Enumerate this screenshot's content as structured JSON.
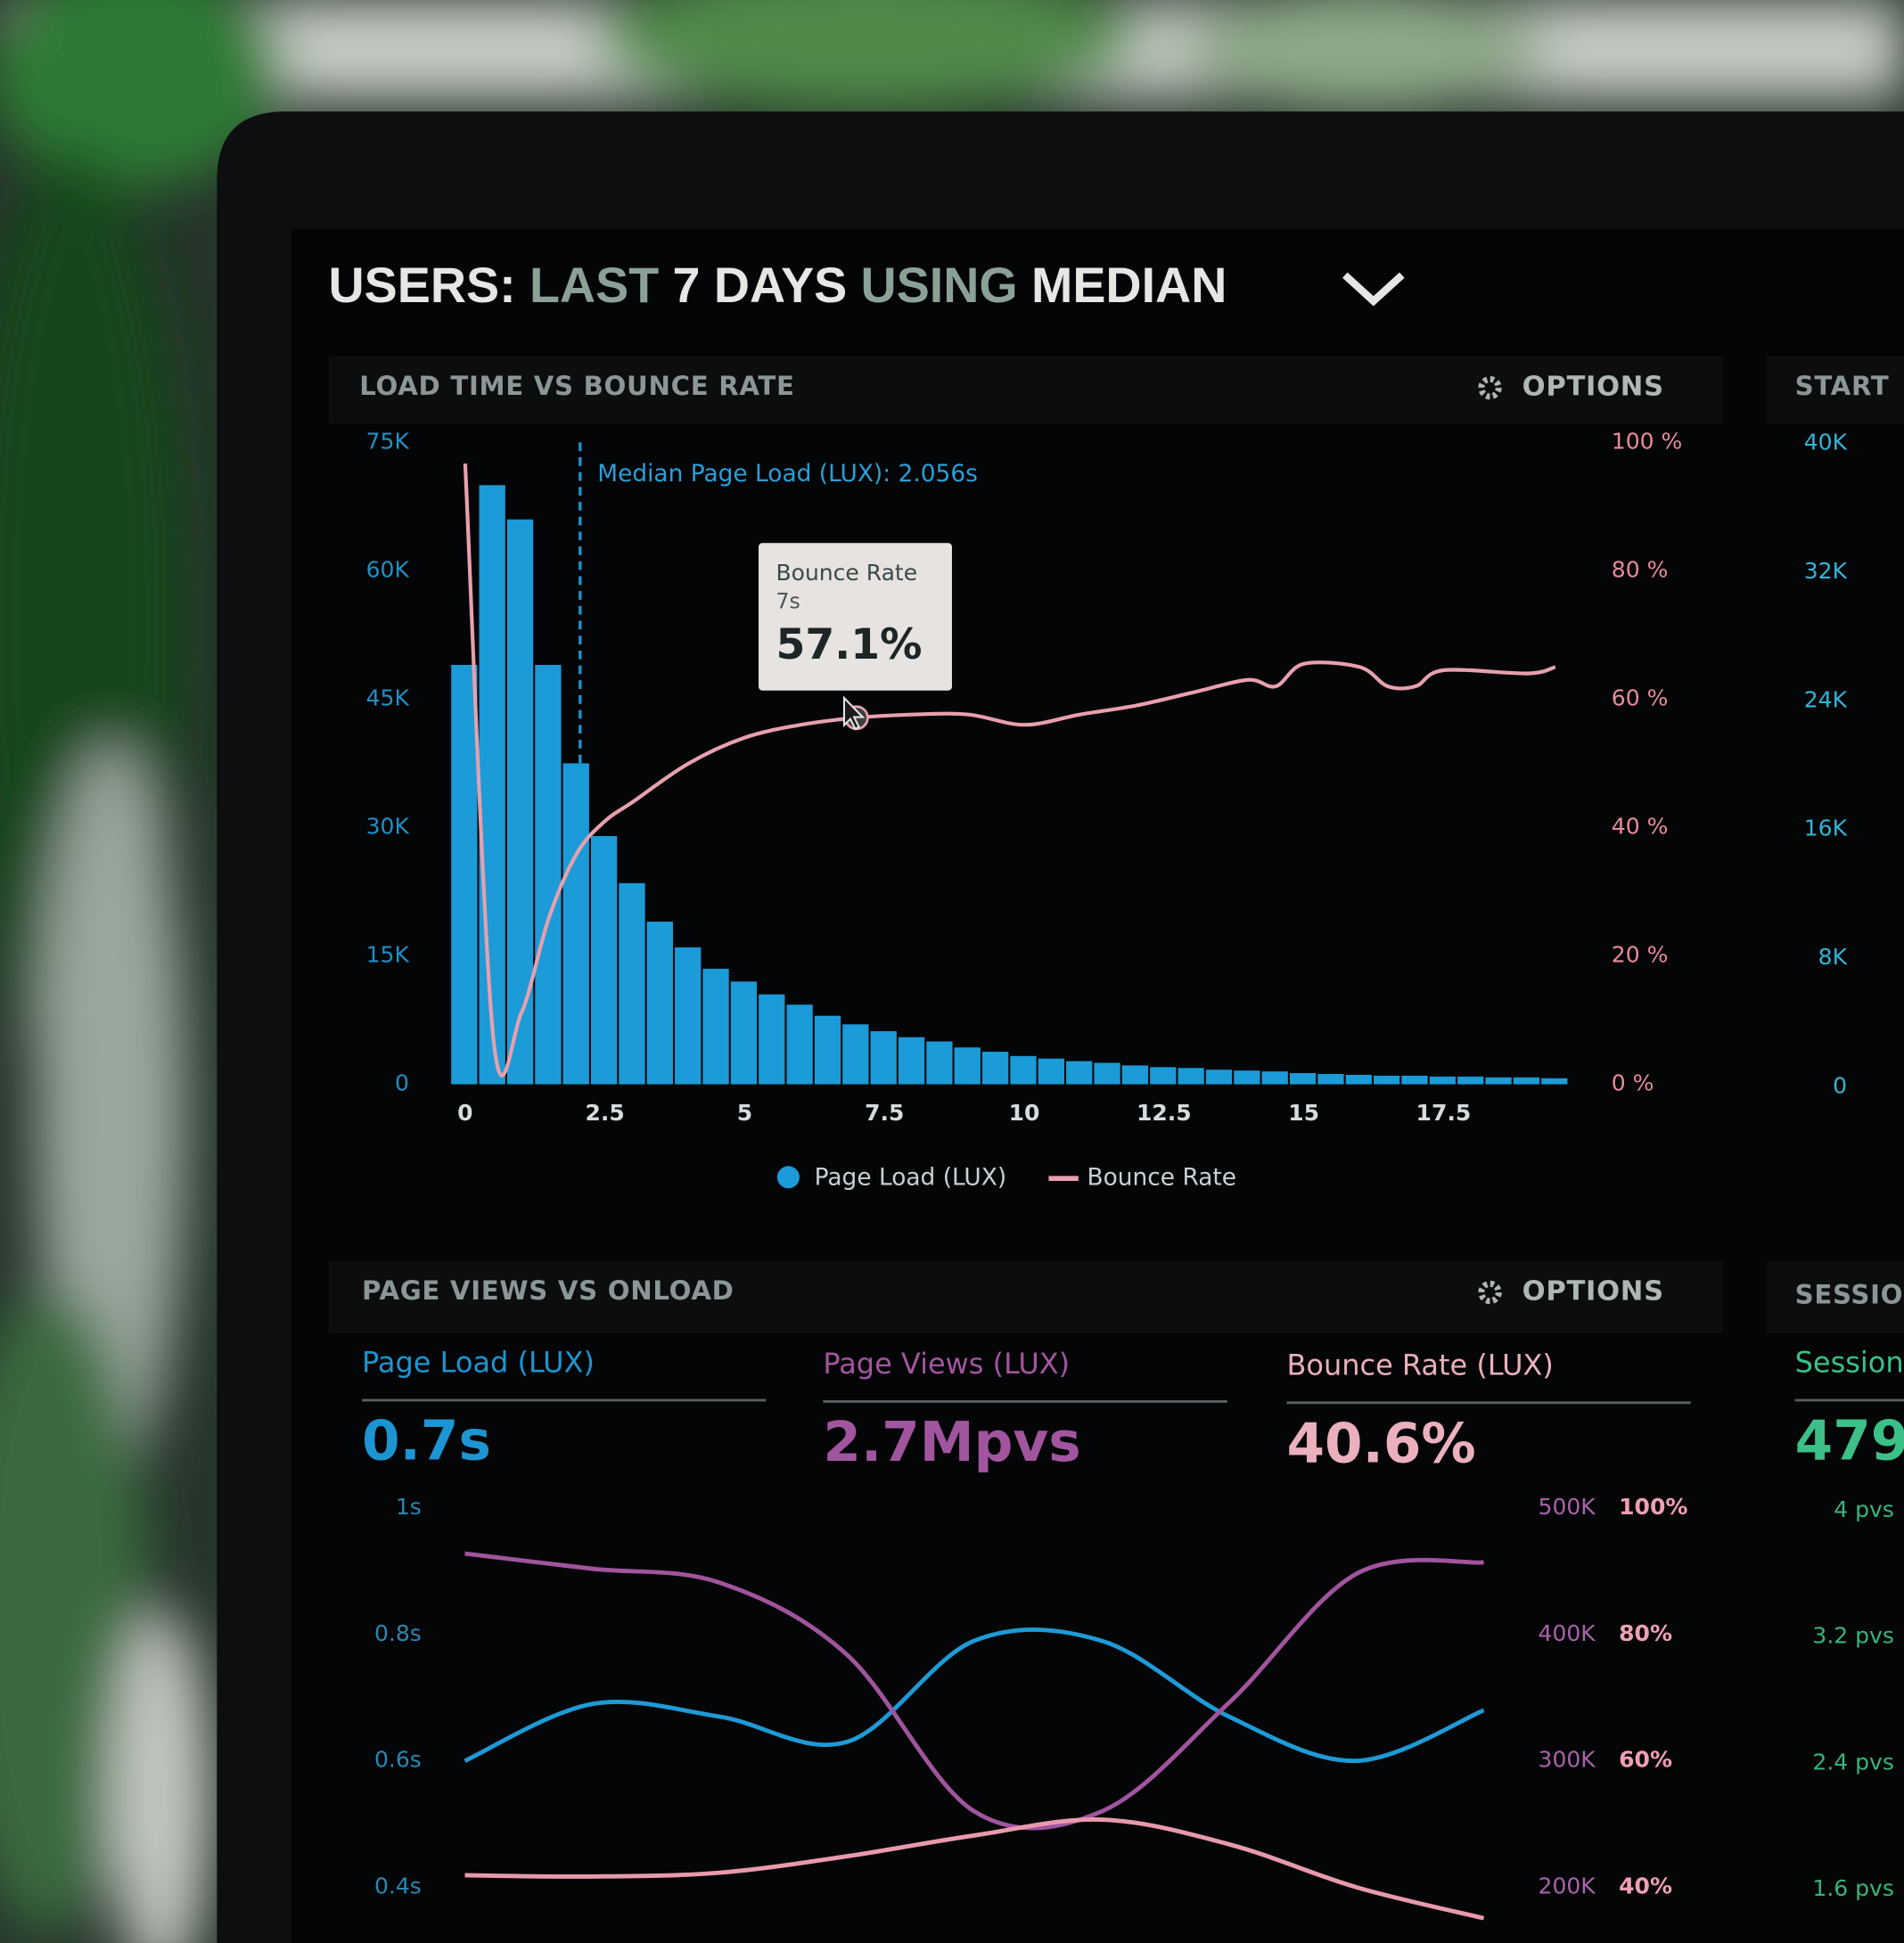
{
  "header": {
    "title_parts": [
      {
        "text": "USERS:",
        "color": "#e4e7e4"
      },
      {
        "text": "LAST",
        "color": "#8ba197"
      },
      {
        "text": "7 DAYS",
        "color": "#e4e7e4"
      },
      {
        "text": "USING",
        "color": "#8ba197"
      },
      {
        "text": "MEDIAN",
        "color": "#e4e7e4"
      }
    ]
  },
  "panels": [
    {
      "title": "LOAD TIME VS BOUNCE RATE",
      "options": "OPTIONS"
    },
    {
      "title": "PAGE VIEWS VS ONLOAD",
      "options": "OPTIONS",
      "kpis": [
        {
          "label": "Page Load (LUX)",
          "value": "0.7s",
          "color": "#1d95d2"
        },
        {
          "label": "Page Views (LUX)",
          "value": "2.7Mpvs",
          "color": "#a2559f"
        },
        {
          "label": "Bounce Rate (LUX)",
          "value": "40.6%",
          "color": "#eab0bd"
        }
      ]
    },
    {
      "title": "START"
    },
    {
      "title": "SESSIO",
      "kpis": [
        {
          "label": "Session",
          "value": "479",
          "color": "#3cc087"
        }
      ]
    }
  ],
  "chart_data": [
    {
      "type": "bar",
      "xlim": [
        -0.25,
        19.75
      ],
      "xticks": [
        0,
        2.5,
        5,
        7.5,
        10,
        12.5,
        15,
        17.5
      ],
      "ylim": [
        0,
        75000
      ],
      "yticks": [
        0,
        {
          "value": 15000,
          "label": "15K"
        },
        {
          "value": 30000,
          "label": "30K"
        },
        {
          "value": 45000,
          "label": "45K"
        },
        {
          "value": 60000,
          "label": "60K"
        },
        {
          "value": 75000,
          "label": "75K"
        }
      ],
      "y2lim": [
        0,
        100
      ],
      "y2ticks": [
        {
          "value": 0,
          "label": "0 %"
        },
        {
          "value": 20,
          "label": "20 %"
        },
        {
          "value": 40,
          "label": "40 %"
        },
        {
          "value": 60,
          "label": "60 %"
        },
        {
          "value": 80,
          "label": "80 %"
        },
        {
          "value": 100,
          "label": "100 %"
        }
      ],
      "series": [
        {
          "name": "Page Load (LUX)",
          "type": "bar",
          "color": "#1b9bd8",
          "x": [
            0,
            0.5,
            1,
            1.5,
            2,
            2.5,
            3,
            3.5,
            4,
            4.5,
            5,
            5.5,
            6,
            6.5,
            7,
            7.5,
            8,
            8.5,
            9,
            9.5,
            10,
            10.5,
            11,
            11.5,
            12,
            12.5,
            13,
            13.5,
            14,
            14.5,
            15,
            15.5,
            16,
            16.5,
            17,
            17.5,
            18,
            18.5,
            19,
            19.5
          ],
          "values": [
            49000,
            70000,
            66000,
            49000,
            37500,
            29000,
            23500,
            19000,
            16000,
            13500,
            12000,
            10500,
            9300,
            8000,
            7000,
            6200,
            5500,
            5000,
            4300,
            3800,
            3300,
            3000,
            2700,
            2500,
            2200,
            2000,
            1900,
            1700,
            1600,
            1500,
            1300,
            1200,
            1100,
            1000,
            1000,
            900,
            900,
            800,
            800,
            700
          ]
        },
        {
          "name": "Bounce Rate",
          "type": "line",
          "axis": "y2",
          "color": "#e8a0ae",
          "x": [
            0,
            0.5,
            1,
            1.5,
            2,
            2.5,
            3,
            4,
            5,
            6,
            7,
            8,
            9,
            10,
            11,
            12,
            13,
            14,
            14.5,
            15,
            16,
            16.5,
            17,
            17.5,
            19,
            19.5
          ],
          "values": [
            96.7,
            7.5,
            11,
            26,
            36,
            41,
            44,
            50,
            54,
            56,
            57.1,
            57.6,
            57.6,
            56,
            57.6,
            59,
            61,
            63,
            62,
            65.5,
            65,
            62,
            62,
            64.5,
            64,
            65
          ]
        }
      ],
      "median_line": {
        "value": 2.056,
        "label": "Median Page Load (LUX): 2.056s"
      },
      "tooltip": {
        "title": "Bounce Rate",
        "x": {
          "value": 7,
          "label": "7s"
        },
        "value": {
          "value": 57.1,
          "label": "57.1%"
        }
      },
      "legend": "bottom"
    },
    {
      "type": "line",
      "categories": [
        null,
        null,
        null,
        null,
        null,
        null,
        null,
        null,
        null
      ],
      "ylim": [
        0.3,
        1
      ],
      "yticks": [
        {
          "value": 1,
          "label": "1s"
        },
        {
          "value": 0.8,
          "label": "0.8s"
        },
        {
          "value": 0.6,
          "label": "0.6s"
        },
        {
          "value": 0.4,
          "label": "0.4s"
        }
      ],
      "y2lim": [
        150000,
        500000
      ],
      "y2ticks": [
        {
          "value": 500000,
          "label": "500K"
        },
        {
          "value": 400000,
          "label": "400K"
        },
        {
          "value": 300000,
          "label": "300K"
        },
        {
          "value": 200000,
          "label": "200K"
        }
      ],
      "y3lim": [
        30,
        100
      ],
      "y3ticks": [
        {
          "value": 100,
          "label": "100%"
        },
        {
          "value": 80,
          "label": "80%"
        },
        {
          "value": 60,
          "label": "60%"
        },
        {
          "value": 40,
          "label": "40%"
        }
      ],
      "series": [
        {
          "color": "#1e9ad6",
          "axis": "y",
          "values": [
            0.6,
            0.69,
            0.67,
            0.63,
            0.79,
            0.79,
            0.67,
            0.6,
            0.68
          ]
        },
        {
          "color": "#a1549e",
          "axis": "y2",
          "values": [
            464000,
            452000,
            441000,
            384000,
            260000,
            260000,
            346000,
            448000,
            457000
          ]
        },
        {
          "color": "#e79aac",
          "axis": "y3",
          "values": [
            41.9,
            41.7,
            42.3,
            44.9,
            48.2,
            50.7,
            46.8,
            40,
            35.1
          ]
        }
      ]
    },
    {
      "type": "bar",
      "ylim": [
        0,
        40000
      ],
      "yticks": [
        {
          "value": 40000,
          "label": "40K"
        },
        {
          "value": 32000,
          "label": "32K"
        },
        {
          "value": 24000,
          "label": "24K"
        },
        {
          "value": 16000,
          "label": "16K"
        },
        {
          "value": 8000,
          "label": "8K"
        },
        0
      ]
    },
    {
      "type": "line",
      "ylim": [
        1.2,
        4
      ],
      "yticks": [
        {
          "value": 4,
          "label": "4 pvs"
        },
        {
          "value": 3.2,
          "label": "3.2 pvs"
        },
        {
          "value": 2.4,
          "label": "2.4 pvs"
        },
        {
          "value": 1.6,
          "label": "1.6 pvs"
        }
      ]
    }
  ]
}
